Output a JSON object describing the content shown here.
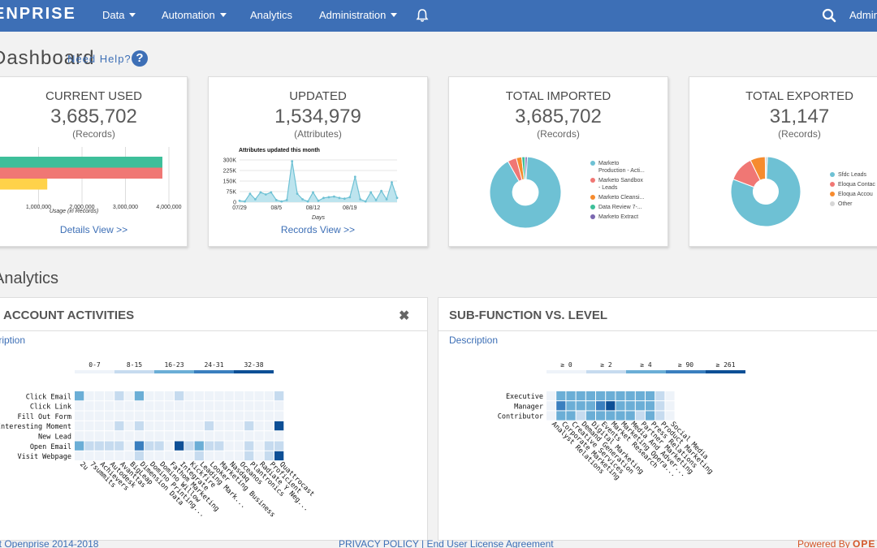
{
  "nav": {
    "logo": "ENPRISE",
    "items": [
      "Data",
      "Automation",
      "Analytics",
      "Administration"
    ],
    "user": "Admin"
  },
  "page": {
    "title": "Dashboard",
    "help": "Need Help?",
    "help_icon": "?"
  },
  "cards": [
    {
      "title": "CURRENT USED",
      "value": "3,685,702",
      "sub": "(Records)",
      "link": "Details View >>",
      "chart_data": {
        "type": "bar",
        "orientation": "horizontal",
        "categories": [
          "",
          "",
          ""
        ],
        "values": [
          3850000,
          3850000,
          1200000
        ],
        "colors": [
          "#3dbf9a",
          "#f07774",
          "#ffd24a"
        ],
        "xticks": [
          "1,000,000",
          "2,000,000",
          "3,000,000",
          "4,000,000"
        ],
        "xlabel": "Usage (in Records)"
      }
    },
    {
      "title": "UPDATED",
      "value": "1,534,979",
      "sub": "(Attributes)",
      "link": "Records View >>",
      "chart_data": {
        "type": "area",
        "title": "Attributes updated this month",
        "xlabel": "Days",
        "yticks": [
          "300K",
          "225K",
          "150K",
          "75K",
          "0"
        ],
        "xticks": [
          "07/29",
          "08/5",
          "08/12",
          "08/19"
        ],
        "ylim": [
          0,
          300000
        ],
        "values": [
          10000,
          5000,
          60000,
          20000,
          70000,
          55000,
          70000,
          15000,
          5000,
          15000,
          290000,
          60000,
          20000,
          5000,
          70000,
          10000,
          30000,
          35000,
          40000,
          30000,
          25000,
          35000,
          180000,
          20000,
          5000,
          70000,
          15000,
          80000,
          20000,
          140000,
          30000
        ]
      }
    },
    {
      "title": "TOTAL IMPORTED",
      "value": "3,685,702",
      "sub": "(Records)",
      "chart_data": {
        "type": "pie",
        "series": [
          {
            "label": "Marketo Production - Acti...",
            "value": 91,
            "color": "#6ec1d4"
          },
          {
            "label": "Marketo Sandbox - Leads",
            "value": 4,
            "color": "#f07774"
          },
          {
            "label": "Marketo Cleansi...",
            "value": 2.5,
            "color": "#f68b2e"
          },
          {
            "label": "Data Review 7-...",
            "value": 1.5,
            "color": "#3dbf9a"
          },
          {
            "label": "Marketo Extract",
            "value": 1,
            "color": "#7b68b0"
          }
        ]
      },
      "legend": [
        {
          "line1": "Marketo",
          "line2": "Production - Acti...",
          "color": "#6ec1d4"
        },
        {
          "line1": "Marketo Sandbox",
          "line2": "- Leads",
          "color": "#f07774"
        },
        {
          "line1": "Marketo Cleansi...",
          "line2": "",
          "color": "#f68b2e"
        },
        {
          "line1": "Data Review 7-...",
          "line2": "",
          "color": "#3dbf9a"
        },
        {
          "line1": "Marketo Extract",
          "line2": "",
          "color": "#7b68b0"
        }
      ]
    },
    {
      "title": "TOTAL EXPORTED",
      "value": "31,147",
      "sub": "(Records)",
      "chart_data": {
        "type": "pie",
        "series": [
          {
            "label": "Sfdc Leads",
            "value": 80,
            "color": "#6ec1d4"
          },
          {
            "label": "Eloqua Contac",
            "value": 12,
            "color": "#f07774"
          },
          {
            "label": "Eloqua Accou",
            "value": 7,
            "color": "#f68b2e"
          },
          {
            "label": "Other",
            "value": 1,
            "color": "#d6d6d6"
          }
        ]
      },
      "legend": [
        {
          "line1": "Sfdc Leads",
          "line2": "",
          "color": "#6ec1d4"
        },
        {
          "line1": "Eloqua Contac",
          "line2": "",
          "color": "#f07774"
        },
        {
          "line1": "Eloqua Accou",
          "line2": "",
          "color": "#f68b2e"
        },
        {
          "line1": "Other",
          "line2": "",
          "color": "#d6d6d6"
        }
      ]
    }
  ],
  "analytics": {
    "title": "Analytics",
    "panels": [
      {
        "title": "ACCOUNT ACTIVITIES",
        "desc": "Description",
        "chart_data": {
          "type": "heatmap",
          "legend_bins": [
            "0-7",
            "8-15",
            "16-23",
            "24-31",
            "32-38"
          ],
          "rows": [
            "Click Email",
            "Click Link",
            "Fill Out Form",
            "Interesting Moment",
            "New Lead",
            "Open Email",
            "Visit Webpage"
          ],
          "cols": [
            "2u",
            "7summits",
            "Achievers",
            "Autodesk",
            "Avanttas",
            "BigLeap",
            "Dimension Data",
            "Domino Printing...",
            "Domino Willow",
            "Fathom Marketing",
            "Integrate",
            "Kickfire",
            "Leading Mark...",
            "Looker",
            "Marketing Business",
            "Nasdaq",
            "Oceanos",
            "Plantronics",
            "Radiate Y Neg...",
            "Proficient",
            "Quattrocast"
          ],
          "values": [
            [
              20,
              2,
              2,
              2,
              8,
              2,
              22,
              2,
              2,
              2,
              8,
              2,
              2,
              2,
              2,
              2,
              2,
              2,
              2,
              6,
              8
            ],
            [
              2,
              2,
              2,
              2,
              2,
              2,
              2,
              2,
              2,
              2,
              2,
              2,
              2,
              2,
              2,
              2,
              2,
              2,
              2,
              2,
              2
            ],
            [
              2,
              2,
              2,
              2,
              2,
              2,
              2,
              2,
              2,
              2,
              2,
              2,
              2,
              2,
              2,
              2,
              2,
              2,
              2,
              2,
              2
            ],
            [
              2,
              2,
              2,
              2,
              8,
              2,
              8,
              2,
              2,
              2,
              2,
              2,
              2,
              8,
              2,
              2,
              2,
              8,
              2,
              2,
              36
            ],
            [
              2,
              2,
              2,
              2,
              2,
              2,
              2,
              2,
              2,
              2,
              2,
              2,
              2,
              2,
              2,
              2,
              2,
              2,
              2,
              2,
              2
            ],
            [
              20,
              10,
              14,
              8,
              8,
              2,
              26,
              8,
              8,
              2,
              34,
              8,
              20,
              14,
              10,
              2,
              2,
              8,
              2,
              10,
              14
            ],
            [
              2,
              2,
              2,
              2,
              2,
              2,
              8,
              2,
              2,
              2,
              2,
              2,
              8,
              2,
              2,
              2,
              2,
              8,
              2,
              8,
              36
            ]
          ]
        }
      },
      {
        "title": "SUB-FUNCTION VS. LEVEL",
        "desc": "Description",
        "chart_data": {
          "type": "heatmap",
          "legend_bins": [
            "≥ 0",
            "≥ 2",
            "≥ 4",
            "≥ 90",
            "≥ 261"
          ],
          "rows": [
            "Executive",
            "Manager",
            "Contributor"
          ],
          "cols": [
            "Analyst Relations",
            "Corporate Marketing",
            "Creative Services",
            "Demand Generation",
            "Digital Marketing",
            "Events",
            "Market Research",
            "Marketing Opera...",
            "Media And Adver...",
            "Partner Marketing",
            "Press Relations",
            "Product Marketing",
            "Social Media"
          ],
          "values": [
            [
              1,
              3,
              3,
              3,
              3,
              3,
              3,
              3,
              3,
              3,
              3,
              2,
              1
            ],
            [
              1,
              4,
              3,
              3,
              3,
              4,
              5,
              3,
              3,
              3,
              3,
              2,
              1
            ],
            [
              1,
              3,
              3,
              2,
              3,
              3,
              3,
              3,
              3,
              2,
              3,
              2,
              1
            ]
          ]
        }
      }
    ]
  },
  "footer": {
    "left": "nt Openprise 2014-2018",
    "center": "PRIVACY POLICY | End User License Agreement",
    "right": "Powered By",
    "right_brand": "OPE"
  }
}
